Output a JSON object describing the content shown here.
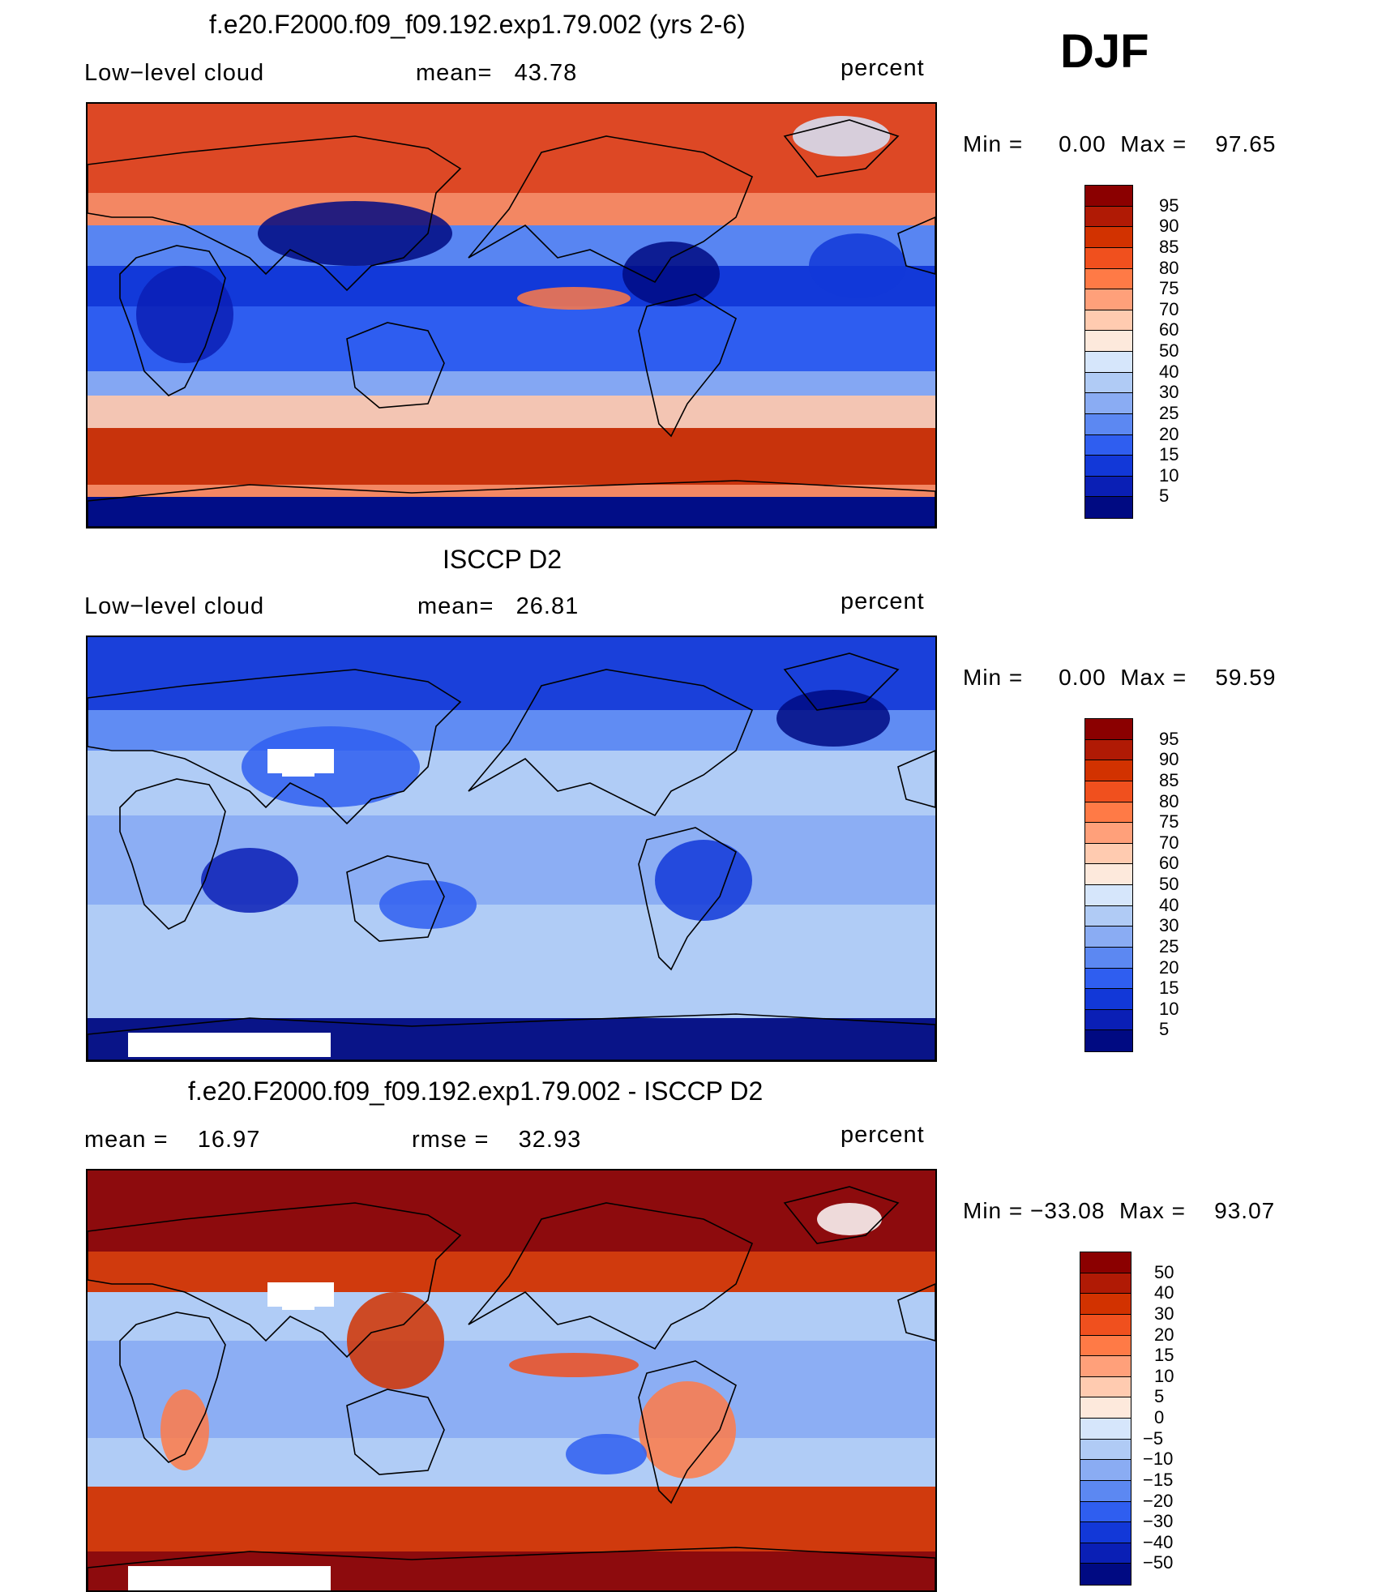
{
  "season": "DJF",
  "panels": [
    {
      "title": "f.e20.F2000.f09_f09.192.exp1.79.002 (yrs 2-6)",
      "left_label": "Low−level cloud",
      "mid_label": "mean=   43.78",
      "right_label": "percent",
      "minmax": "Min =     0.00  Max =    97.65",
      "map_style": "model",
      "colorbar": {
        "colors": [
          "#8b0000",
          "#b01a05",
          "#d23200",
          "#f0501e",
          "#ff7a46",
          "#ffa07a",
          "#ffcbb0",
          "#fde9dc",
          "#d6e6fb",
          "#b0cbf5",
          "#8aacf3",
          "#5c88f2",
          "#2f5ef0",
          "#1238d8",
          "#0a1fb5",
          "#000a82"
        ],
        "labels": [
          "95",
          "90",
          "85",
          "80",
          "75",
          "70",
          "60",
          "50",
          "40",
          "30",
          "25",
          "20",
          "15",
          "10",
          "5"
        ]
      }
    },
    {
      "title": "ISCCP D2",
      "left_label": "Low−level cloud",
      "mid_label": "mean=   26.81",
      "right_label": "percent",
      "minmax": "Min =     0.00  Max =    59.59",
      "map_style": "obs",
      "colorbar": {
        "colors": [
          "#8b0000",
          "#b01a05",
          "#d23200",
          "#f0501e",
          "#ff7a46",
          "#ffa07a",
          "#ffcbb0",
          "#fde9dc",
          "#d6e6fb",
          "#b0cbf5",
          "#8aacf3",
          "#5c88f2",
          "#2f5ef0",
          "#1238d8",
          "#0a1fb5",
          "#000a82"
        ],
        "labels": [
          "95",
          "90",
          "85",
          "80",
          "75",
          "70",
          "60",
          "50",
          "40",
          "30",
          "25",
          "20",
          "15",
          "10",
          "5"
        ]
      }
    },
    {
      "title": "f.e20.F2000.f09_f09.192.exp1.79.002 - ISCCP D2",
      "left_label": "mean =    16.97",
      "mid_label": "rmse =    32.93",
      "right_label": "percent",
      "minmax": "Min = −33.08  Max =    93.07",
      "map_style": "diff",
      "colorbar": {
        "colors": [
          "#8b0000",
          "#b01a05",
          "#d23200",
          "#f0501e",
          "#ff7a46",
          "#ffa07a",
          "#ffcbb0",
          "#fde9dc",
          "#d6e6fb",
          "#b0cbf5",
          "#8aacf3",
          "#5c88f2",
          "#2f5ef0",
          "#1238d8",
          "#0a1fb5",
          "#000a82"
        ],
        "labels": [
          "50",
          "40",
          "30",
          "20",
          "15",
          "10",
          "5",
          "0",
          "−5",
          "−10",
          "−15",
          "−20",
          "−30",
          "−40",
          "−50"
        ]
      }
    }
  ]
}
